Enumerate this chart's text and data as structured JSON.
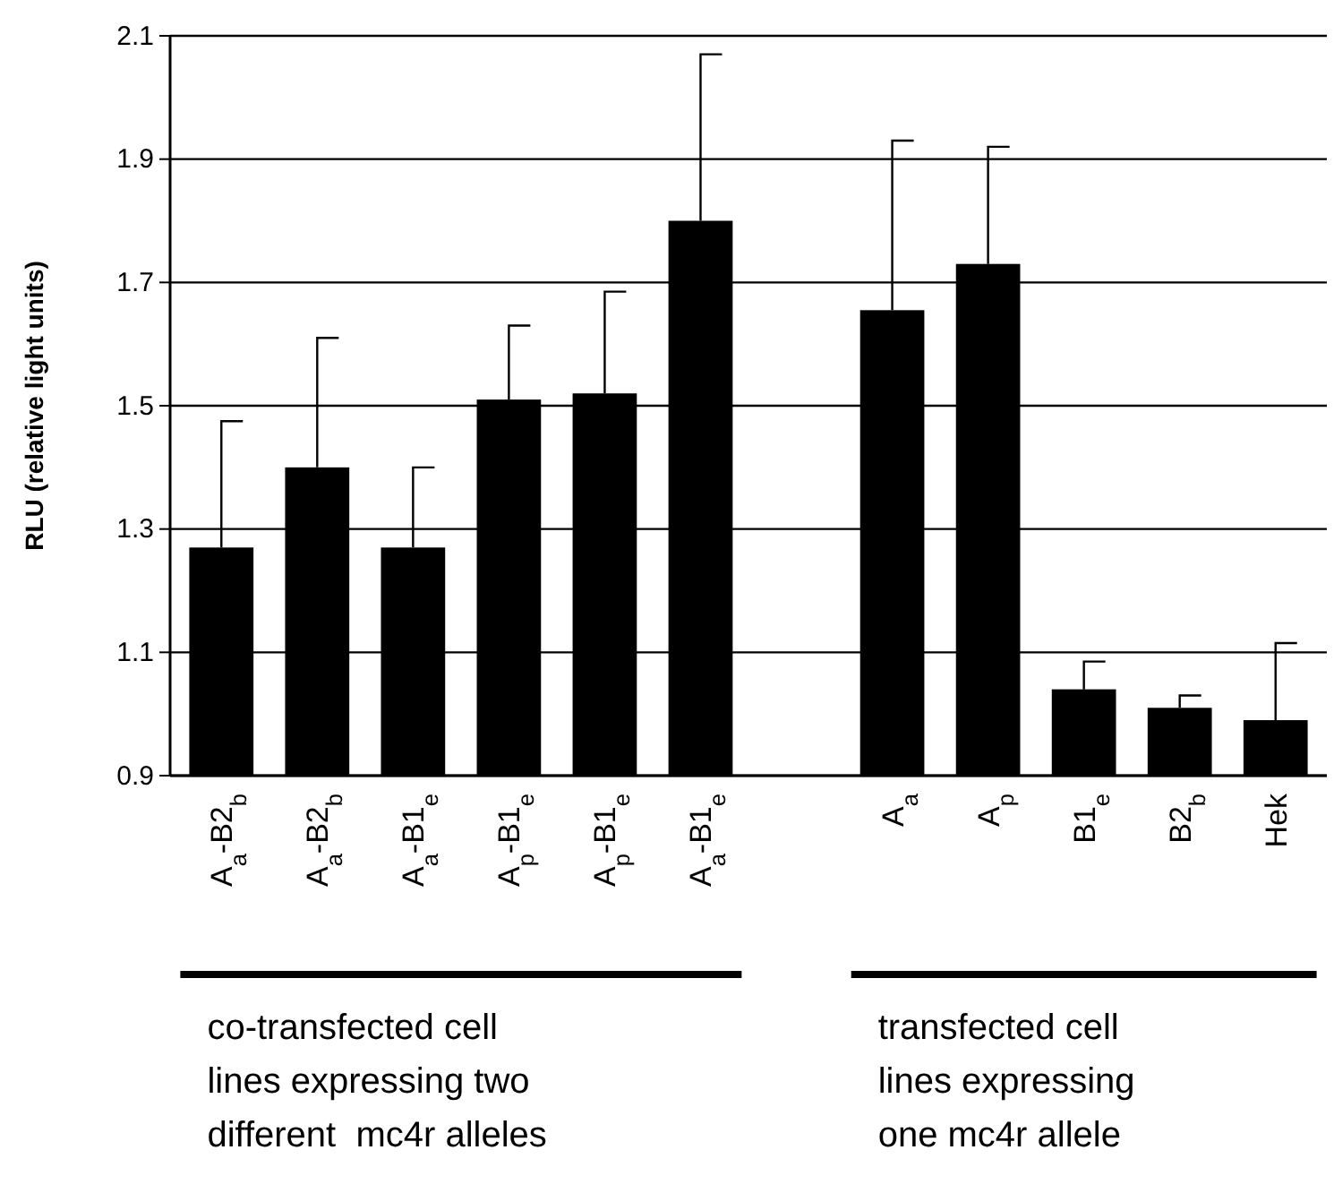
{
  "chart_data": {
    "type": "bar",
    "ylabel": "RLU (relative light units)",
    "categories": [
      "A$_{a}$-B2$_{b}$",
      "A$_{a}$-B2$_{b}$",
      "A$_{a}$-B1$_{e}$",
      "A$_{p}$-B1$_{e}$",
      "A$_{p}$-B1$_{e}$",
      "A$_{a}$-B1$_{e}$",
      null,
      "A$_{a}$",
      "A$_{p}$",
      "B1$_{e}$",
      "B2$_{b}$",
      "Hek"
    ],
    "values": [
      1.27,
      1.4,
      1.27,
      1.51,
      1.52,
      1.8,
      null,
      1.655,
      1.73,
      1.04,
      1.01,
      0.99
    ],
    "errors": [
      [
        1.27,
        1.475
      ],
      [
        1.4,
        1.61
      ],
      [
        1.27,
        1.4
      ],
      [
        1.51,
        1.63
      ],
      [
        1.52,
        1.685
      ],
      [
        1.8,
        2.07
      ],
      null,
      [
        1.655,
        1.93
      ],
      [
        1.73,
        1.92
      ],
      [
        1.04,
        1.085
      ],
      [
        1.01,
        1.03
      ],
      [
        0.99,
        1.115
      ]
    ],
    "color": "#000000",
    "ylim": [
      0.9,
      2.1
    ],
    "yticks": [
      0.9,
      1.1,
      1.3,
      1.5,
      1.7,
      1.9,
      2.1
    ],
    "grid": "y",
    "annotations": [
      "co-transfected cell\nlines expressing two\ndifferent  mc4r alleles",
      "transfected cell\nlines expressing\none mc4r allele"
    ]
  }
}
